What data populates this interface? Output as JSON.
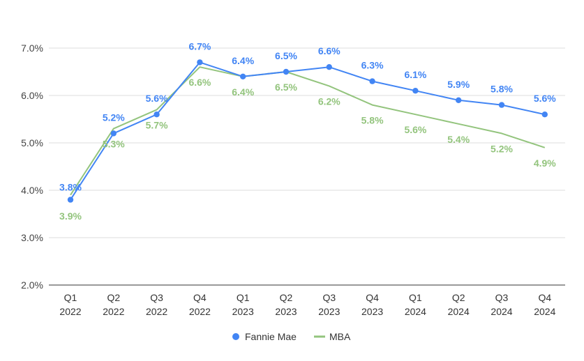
{
  "chart_data": {
    "type": "line",
    "categories": [
      [
        "Q1",
        "2022"
      ],
      [
        "Q2",
        "2022"
      ],
      [
        "Q3",
        "2022"
      ],
      [
        "Q4",
        "2022"
      ],
      [
        "Q1",
        "2023"
      ],
      [
        "Q2",
        "2023"
      ],
      [
        "Q3",
        "2023"
      ],
      [
        "Q4",
        "2023"
      ],
      [
        "Q1",
        "2024"
      ],
      [
        "Q2",
        "2024"
      ],
      [
        "Q3",
        "2024"
      ],
      [
        "Q4",
        "2024"
      ]
    ],
    "ylim": [
      2.0,
      7.0
    ],
    "yticks": [
      "2.0%",
      "3.0%",
      "4.0%",
      "5.0%",
      "6.0%",
      "7.0%"
    ],
    "grid": "horizontal",
    "legend": "bottom",
    "series": [
      {
        "name": "Fannie Mae",
        "color": "#4285f4",
        "marker": "circle",
        "values": [
          3.8,
          5.2,
          5.6,
          6.7,
          6.4,
          6.5,
          6.6,
          6.3,
          6.1,
          5.9,
          5.8,
          5.6
        ],
        "labels": [
          "3.8%",
          "5.2%",
          "5.6%",
          "6.7%",
          "6.4%",
          "6.5%",
          "6.6%",
          "6.3%",
          "6.1%",
          "5.9%",
          "5.8%",
          "5.6%"
        ]
      },
      {
        "name": "MBA",
        "color": "#93c47d",
        "marker": "line",
        "values": [
          3.9,
          5.3,
          5.7,
          6.6,
          6.4,
          6.5,
          6.2,
          5.8,
          5.6,
          5.4,
          5.2,
          4.9
        ],
        "labels": [
          "3.9%",
          "5.3%",
          "5.7%",
          "6.6%",
          "6.4%",
          "6.5%",
          "6.2%",
          "5.8%",
          "5.6%",
          "5.4%",
          "5.2%",
          "4.9%"
        ]
      }
    ]
  }
}
